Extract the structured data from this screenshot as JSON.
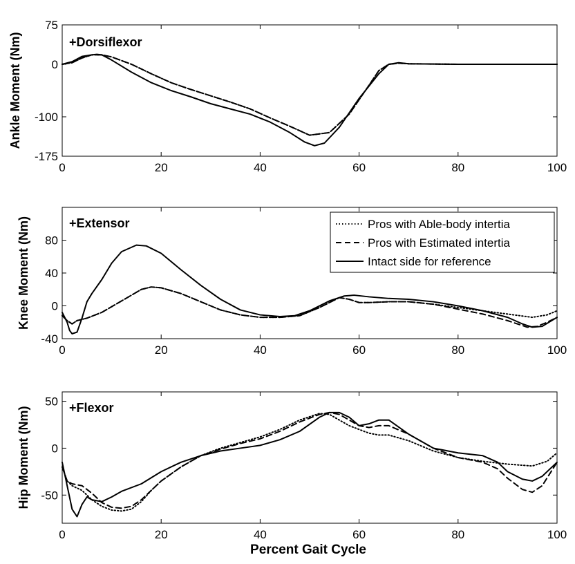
{
  "chart_data": [
    {
      "type": "line",
      "id": "ankle",
      "panel_label": "+Dorsiflexor",
      "ylabel": "Ankle Moment (Nm)",
      "xlabel": "",
      "xlim": [
        0,
        100
      ],
      "ylim": [
        -175,
        75
      ],
      "yticks": [
        75,
        0,
        -100,
        -175
      ],
      "xticks": [
        0,
        20,
        40,
        60,
        80,
        100
      ],
      "series": [
        {
          "name": "Pros with Able-body intertia",
          "style": "dotted",
          "x": [
            0,
            2,
            4,
            6,
            8,
            10,
            14,
            18,
            22,
            26,
            30,
            34,
            38,
            42,
            46,
            50,
            54,
            58,
            62,
            64,
            66,
            68,
            70,
            80,
            90,
            100
          ],
          "y": [
            0,
            3,
            12,
            18,
            18,
            14,
            0,
            -18,
            -35,
            -48,
            -60,
            -72,
            -85,
            -102,
            -118,
            -135,
            -130,
            -95,
            -40,
            -12,
            0,
            2,
            1,
            0,
            0,
            0
          ]
        },
        {
          "name": "Pros with Estimated intertia",
          "style": "dashed",
          "x": [
            0,
            2,
            4,
            6,
            8,
            10,
            14,
            18,
            22,
            26,
            30,
            34,
            38,
            42,
            46,
            50,
            54,
            58,
            62,
            64,
            66,
            68,
            70,
            80,
            90,
            100
          ],
          "y": [
            0,
            3,
            12,
            18,
            18,
            14,
            0,
            -18,
            -35,
            -48,
            -60,
            -72,
            -85,
            -102,
            -118,
            -135,
            -130,
            -95,
            -40,
            -12,
            0,
            2,
            1,
            0,
            0,
            0
          ]
        },
        {
          "name": "Intact side for reference",
          "style": "solid",
          "x": [
            0,
            2,
            4,
            6,
            7,
            8,
            10,
            14,
            18,
            22,
            26,
            30,
            34,
            38,
            42,
            46,
            49,
            51,
            53,
            56,
            60,
            64,
            66,
            68,
            70,
            80,
            90,
            100
          ],
          "y": [
            0,
            5,
            15,
            18,
            19,
            18,
            8,
            -15,
            -35,
            -50,
            -62,
            -75,
            -85,
            -95,
            -110,
            -130,
            -148,
            -155,
            -150,
            -120,
            -65,
            -18,
            0,
            3,
            1,
            0,
            0,
            0
          ]
        }
      ]
    },
    {
      "type": "line",
      "id": "knee",
      "panel_label": "+Extensor",
      "ylabel": "Knee Moment (Nm)",
      "xlabel": "",
      "xlim": [
        0,
        100
      ],
      "ylim": [
        -40,
        120
      ],
      "yticks": [
        80,
        40,
        0,
        -40
      ],
      "xticks": [
        0,
        20,
        40,
        60,
        80,
        100
      ],
      "series": [
        {
          "name": "Pros with Able-body intertia",
          "style": "dotted",
          "x": [
            0,
            1,
            2,
            3,
            5,
            8,
            12,
            16,
            18,
            20,
            24,
            28,
            32,
            36,
            40,
            44,
            48,
            52,
            56,
            58,
            60,
            62,
            66,
            70,
            75,
            80,
            85,
            90,
            95,
            98,
            100
          ],
          "y": [
            -12,
            -18,
            -22,
            -18,
            -15,
            -8,
            6,
            20,
            23,
            22,
            15,
            5,
            -5,
            -11,
            -14,
            -14,
            -12,
            -2,
            10,
            8,
            4,
            4,
            5,
            5,
            2,
            -2,
            -6,
            -10,
            -14,
            -11,
            -6
          ]
        },
        {
          "name": "Pros with Estimated intertia",
          "style": "dashed",
          "x": [
            0,
            1,
            2,
            3,
            5,
            8,
            12,
            16,
            18,
            20,
            24,
            28,
            32,
            36,
            40,
            44,
            48,
            52,
            56,
            58,
            60,
            62,
            66,
            70,
            75,
            80,
            85,
            90,
            94,
            96,
            98,
            100
          ],
          "y": [
            -12,
            -18,
            -22,
            -18,
            -15,
            -8,
            6,
            20,
            23,
            22,
            15,
            5,
            -5,
            -11,
            -14,
            -14,
            -12,
            -2,
            10,
            8,
            4,
            4,
            5,
            5,
            2,
            -4,
            -10,
            -18,
            -26,
            -25,
            -20,
            -14
          ]
        },
        {
          "name": "Intact side for reference",
          "style": "solid",
          "x": [
            0,
            1,
            1.5,
            2,
            3,
            4,
            5,
            6,
            8,
            10,
            12,
            15,
            17,
            20,
            24,
            28,
            32,
            36,
            40,
            44,
            47,
            50,
            54,
            57,
            59,
            62,
            66,
            70,
            75,
            80,
            85,
            90,
            93,
            95,
            97,
            100
          ],
          "y": [
            -8,
            -20,
            -30,
            -34,
            -32,
            -15,
            5,
            15,
            32,
            52,
            66,
            74,
            73,
            64,
            44,
            25,
            8,
            -5,
            -11,
            -13,
            -12,
            -6,
            6,
            12,
            13,
            11,
            9,
            8,
            5,
            0,
            -6,
            -14,
            -22,
            -26,
            -25,
            -14
          ]
        }
      ],
      "legend": {
        "position": "top-right",
        "entries": [
          {
            "label": "Pros with Able-body intertia",
            "style": "dotted"
          },
          {
            "label": "Pros with Estimated intertia",
            "style": "dashed"
          },
          {
            "label": "Intact side for reference",
            "style": "solid"
          }
        ]
      }
    },
    {
      "type": "line",
      "id": "hip",
      "panel_label": "+Flexor",
      "ylabel": "Hip Moment (Nm)",
      "xlabel": "Percent Gait Cycle",
      "xlim": [
        0,
        100
      ],
      "ylim": [
        -80,
        60
      ],
      "yticks": [
        50,
        0,
        -50
      ],
      "xticks": [
        0,
        20,
        40,
        60,
        80,
        100
      ],
      "series": [
        {
          "name": "Pros with Able-body intertia",
          "style": "dotted",
          "x": [
            0,
            1,
            2,
            4,
            6,
            8,
            10,
            12,
            14,
            16,
            18,
            20,
            24,
            28,
            32,
            36,
            40,
            44,
            48,
            52,
            54,
            56,
            58,
            60,
            62,
            64,
            66,
            70,
            75,
            80,
            85,
            90,
            95,
            98,
            100
          ],
          "y": [
            -20,
            -35,
            -40,
            -45,
            -55,
            -62,
            -66,
            -67,
            -65,
            -57,
            -45,
            -35,
            -20,
            -8,
            0,
            6,
            12,
            20,
            30,
            37,
            36,
            30,
            24,
            20,
            16,
            14,
            14,
            8,
            -3,
            -10,
            -14,
            -17,
            -19,
            -14,
            -5
          ]
        },
        {
          "name": "Pros with Estimated intertia",
          "style": "dashed",
          "x": [
            0,
            1,
            2,
            4,
            6,
            8,
            10,
            12,
            14,
            16,
            18,
            20,
            24,
            28,
            32,
            36,
            40,
            44,
            48,
            52,
            54,
            56,
            58,
            60,
            62,
            64,
            66,
            70,
            75,
            80,
            85,
            88,
            90,
            93,
            95,
            97,
            100
          ],
          "y": [
            -20,
            -35,
            -38,
            -40,
            -48,
            -58,
            -63,
            -64,
            -62,
            -55,
            -45,
            -35,
            -20,
            -8,
            -1,
            5,
            10,
            18,
            28,
            36,
            38,
            36,
            30,
            24,
            22,
            24,
            24,
            15,
            0,
            -10,
            -15,
            -22,
            -32,
            -44,
            -47,
            -40,
            -15
          ]
        },
        {
          "name": "Intact side for reference",
          "style": "solid",
          "x": [
            0,
            1,
            2,
            3,
            4,
            5,
            6,
            8,
            10,
            12,
            16,
            20,
            24,
            28,
            32,
            36,
            40,
            44,
            48,
            52,
            54,
            56,
            58,
            60,
            62,
            64,
            66,
            70,
            75,
            80,
            85,
            88,
            90,
            93,
            95,
            97,
            100
          ],
          "y": [
            -15,
            -40,
            -65,
            -73,
            -60,
            -52,
            -55,
            -57,
            -52,
            -46,
            -38,
            -25,
            -15,
            -8,
            -3,
            0,
            3,
            9,
            18,
            33,
            38,
            38,
            33,
            24,
            26,
            30,
            30,
            15,
            0,
            -5,
            -8,
            -15,
            -25,
            -33,
            -35,
            -30,
            -15
          ]
        }
      ]
    }
  ]
}
